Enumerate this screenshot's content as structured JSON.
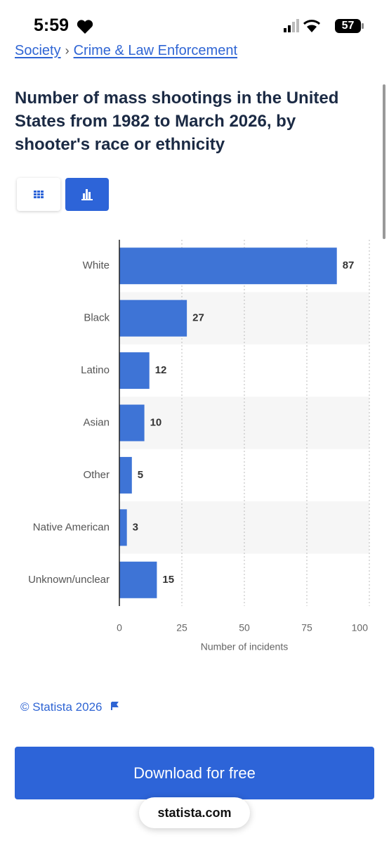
{
  "status_bar": {
    "time": "5:59",
    "battery": "57"
  },
  "breadcrumb": {
    "items": [
      "Society",
      "Crime & Law Enforcement"
    ],
    "separator": "›"
  },
  "chart_data": {
    "type": "bar",
    "orientation": "horizontal",
    "title": "Number of mass shootings in the United States from 1982 to March 2026, by shooter's race or ethnicity",
    "categories": [
      "White",
      "Black",
      "Latino",
      "Asian",
      "Other",
      "Native American",
      "Unknown/unclear"
    ],
    "values": [
      87,
      27,
      12,
      10,
      5,
      3,
      15
    ],
    "color": "#3e74d6",
    "xlabel": "Number of incidents",
    "xlim": [
      0,
      100
    ],
    "xticks": [
      0,
      25,
      50,
      75,
      100
    ],
    "grid": true
  },
  "source": "© Statista 2026",
  "button": "Download for free",
  "site": "statista.com"
}
